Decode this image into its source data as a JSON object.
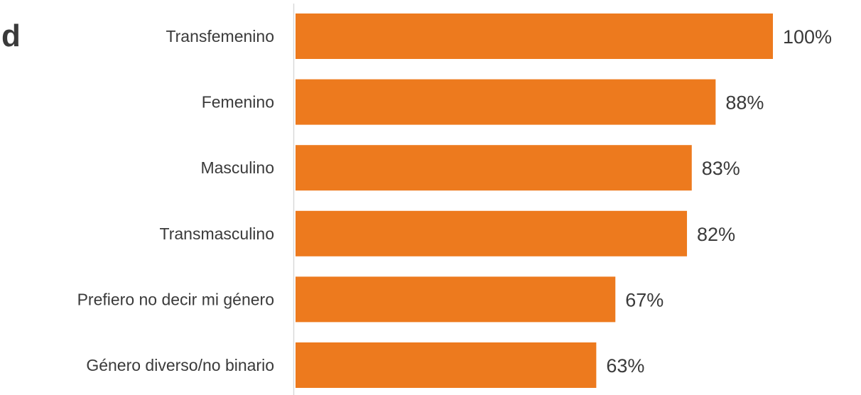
{
  "heading_fragment": "d",
  "chart_data": {
    "type": "bar",
    "orientation": "horizontal",
    "categories": [
      "Transfemenino",
      "Femenino",
      "Masculino",
      "Transmasculino",
      "Prefiero no decir mi género",
      "Género diverso/no binario"
    ],
    "values": [
      100,
      88,
      83,
      82,
      67,
      63
    ],
    "value_labels": [
      "100%",
      "88%",
      "83%",
      "82%",
      "67%",
      "63%"
    ],
    "xlim": [
      0,
      100
    ],
    "grid": false,
    "legend": "none",
    "bar_color": "#ED7A1E",
    "axis_color": "#D9D9D9"
  }
}
